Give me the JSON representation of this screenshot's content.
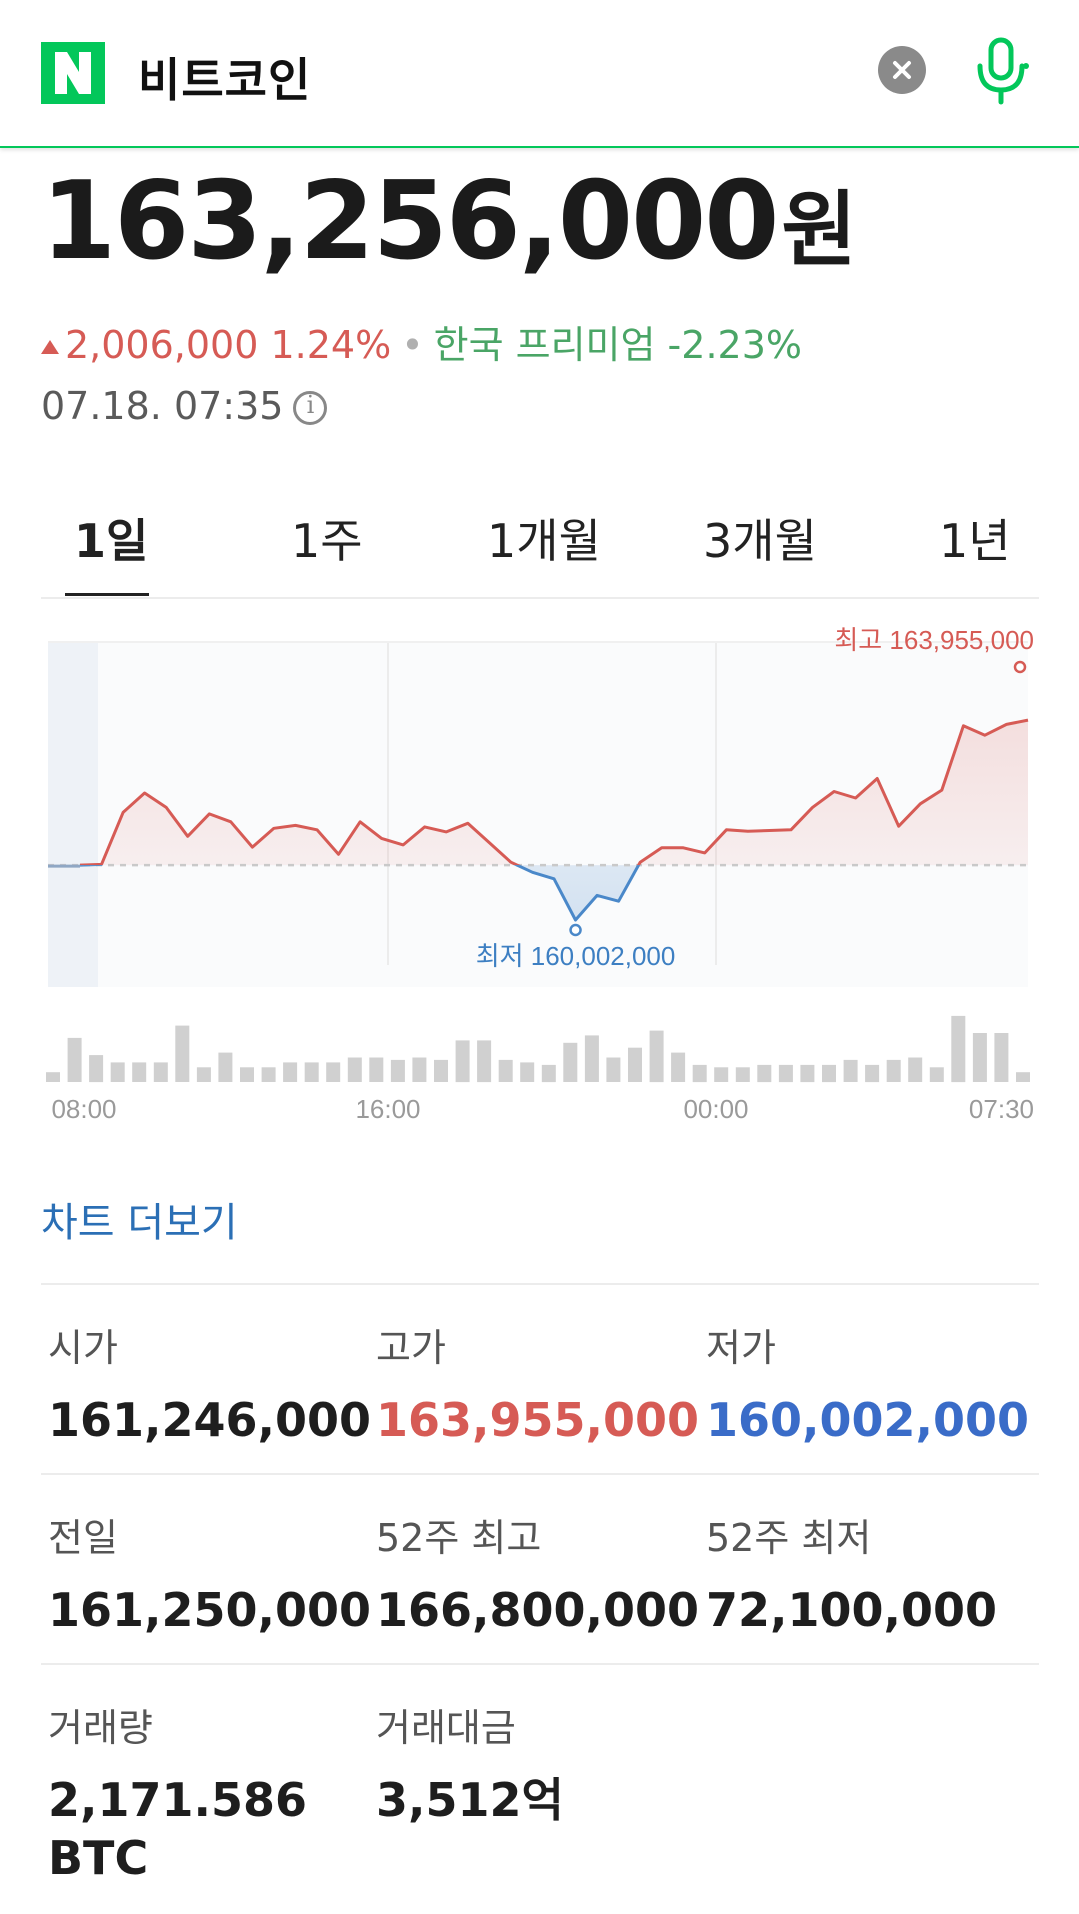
{
  "search": {
    "query": "비트코인"
  },
  "quote": {
    "price": "163,256,000",
    "unit": "원",
    "change_amount": "2,006,000",
    "change_percent": "1.24%",
    "premium": "한국 프리미엄 -2.23%",
    "timestamp": "07.18. 07:35"
  },
  "tabs": [
    "1일",
    "1주",
    "1개월",
    "3개월",
    "1년"
  ],
  "chart_more": "차트 더보기",
  "chart_data": {
    "type": "line",
    "x_ticks": [
      "08:00",
      "16:00",
      "00:00",
      "07:30"
    ],
    "previous_close": 161250000,
    "high_label": "최고 163,955,000",
    "low_label": "최저 160,002,000",
    "series": [
      {
        "values": [
          161250000,
          161260000,
          161980000,
          162250000,
          162050000,
          161650000,
          161960000,
          161850000,
          161500000,
          161760000,
          161800000,
          161740000,
          161400000,
          161850000,
          161620000,
          161530000,
          161780000,
          161710000,
          161830000,
          161560000,
          161290000,
          161150000,
          161060000,
          160490000,
          160830000,
          160750000,
          161290000,
          161490000,
          161490000,
          161420000,
          161740000,
          161720000,
          161730000,
          161740000,
          162050000,
          162270000,
          162180000,
          162450000,
          161790000,
          162100000,
          162290000,
          163180000,
          163050000,
          163200000,
          163260000
        ]
      }
    ],
    "volume": [
      4,
      18,
      11,
      8,
      8,
      8,
      23,
      6,
      12,
      6,
      6,
      8,
      8,
      8,
      10,
      10,
      9,
      10,
      9,
      17,
      17,
      9,
      8,
      7,
      16,
      19,
      10,
      14,
      21,
      12,
      7,
      6,
      6,
      7,
      7,
      7,
      7,
      9,
      7,
      9,
      10,
      6,
      27,
      20,
      20,
      4
    ]
  },
  "stats": [
    [
      {
        "label": "시가",
        "value": "161,246,000"
      },
      {
        "label": "고가",
        "value": "163,955,000"
      },
      {
        "label": "저가",
        "value": "160,002,000"
      }
    ],
    [
      {
        "label": "전일",
        "value": "161,250,000"
      },
      {
        "label": "52주 최고",
        "value": "166,800,000"
      },
      {
        "label": "52주 최저",
        "value": "72,100,000"
      }
    ],
    [
      {
        "label": "거래량",
        "value": "2,171.586",
        "value2": "BTC"
      },
      {
        "label": "거래대금",
        "value": "3,512억"
      }
    ]
  ],
  "colors": {
    "up": "#d65b55",
    "down": "#4a88c9",
    "brand": "#03c75a"
  }
}
